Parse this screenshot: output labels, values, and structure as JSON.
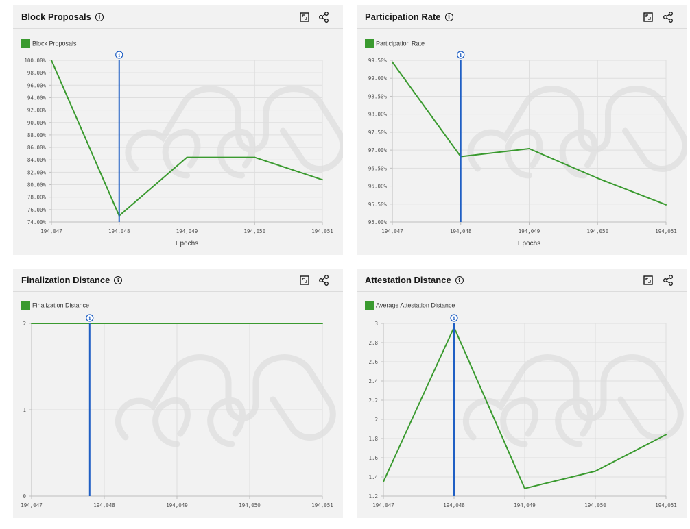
{
  "colors": {
    "series": "#3a9a2f",
    "marker": "#1f5fc4",
    "grid": "#dedede",
    "axis": "#bdbdbd"
  },
  "icons": {
    "info": "info-icon",
    "expand": "maximize-icon",
    "share": "share-icon"
  },
  "charts": [
    {
      "id": "block-proposals",
      "title": "Block Proposals",
      "legend": "Block Proposals",
      "xlabel": "Epochs",
      "chart_data": {
        "type": "line",
        "x": [
          "194,047",
          "194,048",
          "194,049",
          "194,050",
          "194,051"
        ],
        "series": [
          {
            "name": "Block Proposals",
            "values": [
              100.0,
              75.0,
              84.4,
              84.4,
              80.8
            ]
          }
        ],
        "ylim": [
          74,
          100
        ],
        "yticks": [
          74,
          76,
          78,
          80,
          82,
          84,
          86,
          88,
          90,
          92,
          94,
          96,
          98,
          100
        ],
        "ytick_labels": [
          "74.00%",
          "76.00%",
          "78.00%",
          "80.00%",
          "82.00%",
          "84.00%",
          "86.00%",
          "88.00%",
          "90.00%",
          "92.00%",
          "94.00%",
          "96.00%",
          "98.00%",
          "100.00%"
        ],
        "marker_x_index": 1,
        "grid": true,
        "legend_position": "top-left"
      }
    },
    {
      "id": "participation-rate",
      "title": "Participation Rate",
      "legend": "Participation Rate",
      "xlabel": "Epochs",
      "chart_data": {
        "type": "line",
        "x": [
          "194,047",
          "194,048",
          "194,049",
          "194,050",
          "194,051"
        ],
        "series": [
          {
            "name": "Participation Rate",
            "values": [
              99.45,
              96.82,
              97.04,
              96.22,
              95.48
            ]
          }
        ],
        "ylim": [
          95,
          99.5
        ],
        "yticks": [
          95.0,
          95.5,
          96.0,
          96.5,
          97.0,
          97.5,
          98.0,
          98.5,
          99.0,
          99.5
        ],
        "ytick_labels": [
          "95.00%",
          "95.50%",
          "96.00%",
          "96.50%",
          "97.00%",
          "97.50%",
          "98.00%",
          "98.50%",
          "99.00%",
          "99.50%"
        ],
        "marker_x_index": 1,
        "grid": true,
        "legend_position": "top-left"
      }
    },
    {
      "id": "finalization-distance",
      "title": "Finalization Distance",
      "legend": "Finalization Distance",
      "xlabel": "",
      "chart_data": {
        "type": "line",
        "x": [
          "194,047",
          "194,048",
          "194,049",
          "194,050",
          "194,051"
        ],
        "series": [
          {
            "name": "Finalization Distance",
            "values": [
              2,
              2,
              2,
              2,
              2
            ]
          }
        ],
        "ylim": [
          0,
          2
        ],
        "yticks": [
          0,
          1,
          2
        ],
        "ytick_labels": [
          "0",
          "1",
          "2"
        ],
        "marker_x_index": 0.8,
        "grid": true,
        "legend_position": "top-left"
      }
    },
    {
      "id": "attestation-distance",
      "title": "Attestation Distance",
      "legend": "Average Attestation Distance",
      "xlabel": "",
      "chart_data": {
        "type": "line",
        "x": [
          "194,047",
          "194,048",
          "194,049",
          "194,050",
          "194,051"
        ],
        "series": [
          {
            "name": "Average Attestation Distance",
            "values": [
              1.35,
              2.96,
              1.28,
              1.46,
              1.84
            ]
          }
        ],
        "ylim": [
          1.2,
          3
        ],
        "yticks": [
          1.2,
          1.4,
          1.6,
          1.8,
          2.0,
          2.2,
          2.4,
          2.6,
          2.8,
          3.0
        ],
        "ytick_labels": [
          "1.2",
          "1.4",
          "1.6",
          "1.8",
          "2",
          "2.2",
          "2.4",
          "2.6",
          "2.8",
          "3"
        ],
        "marker_x_index": 1,
        "grid": true,
        "legend_position": "top-left"
      }
    }
  ]
}
